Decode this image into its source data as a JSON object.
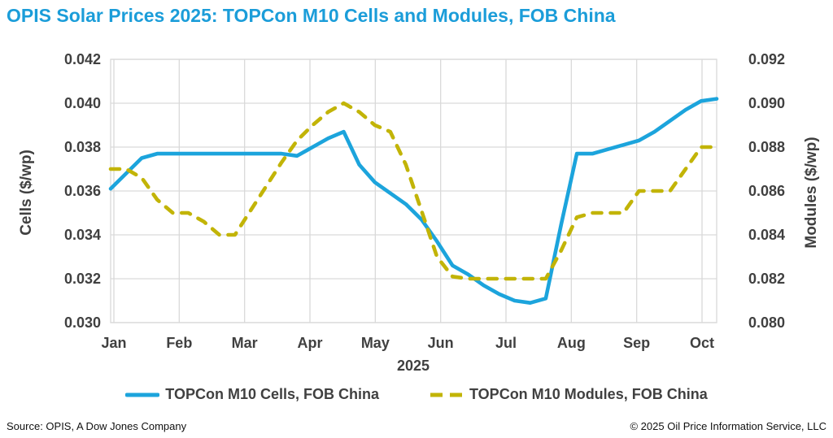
{
  "title": "OPIS Solar Prices 2025: TOPCon M10 Cells and Modules, FOB China",
  "colors": {
    "title_text": "#1b9dd9",
    "cells_line": "#1ca4dc",
    "modules_line": "#c2b407",
    "gridline": "#d9d9d9",
    "axis_text": "#404040",
    "footer_text": "#111111"
  },
  "chart_data": {
    "type": "line",
    "title": "OPIS Solar Prices 2025: TOPCon M10 Cells and Modules, FOB China",
    "grid": true,
    "legend_position": "bottom",
    "x_axis": {
      "year_label": "2025",
      "frequency": "weekly",
      "months": [
        "Jan",
        "Feb",
        "Mar",
        "Apr",
        "May",
        "Jun",
        "Jul",
        "Aug",
        "Sep",
        "Oct"
      ]
    },
    "left_axis": {
      "title": "Cells ($/wp)",
      "min": 0.03,
      "max": 0.042,
      "tick_step": 0.002,
      "ticks": [
        "0.042",
        "0.040",
        "0.038",
        "0.036",
        "0.034",
        "0.032",
        "0.030"
      ]
    },
    "right_axis": {
      "title": "Modules ($/wp)",
      "min": 0.08,
      "max": 0.092,
      "tick_step": 0.002,
      "ticks": [
        "0.092",
        "0.090",
        "0.088",
        "0.086",
        "0.084",
        "0.082",
        "0.080"
      ]
    },
    "series": [
      {
        "name": "TOPCon M10 Cells, FOB China",
        "axis": "left",
        "color": "#1ca4dc",
        "line_style": "solid",
        "values": [
          0.0361,
          0.0368,
          0.0375,
          0.0377,
          0.0377,
          0.0377,
          0.0377,
          0.0377,
          0.0377,
          0.0377,
          0.0377,
          0.0377,
          0.0376,
          0.038,
          0.0384,
          0.0387,
          0.0372,
          0.0364,
          0.0359,
          0.0354,
          0.0347,
          0.0337,
          0.0326,
          0.0322,
          0.0317,
          0.0313,
          0.031,
          0.0309,
          0.0311,
          0.0345,
          0.0377,
          0.0377,
          0.0379,
          0.0381,
          0.0383,
          0.0387,
          0.0392,
          0.0397,
          0.0401,
          0.0402
        ]
      },
      {
        "name": "TOPCon M10 Modules, FOB China",
        "axis": "right",
        "color": "#c2b407",
        "line_style": "dashed",
        "values": [
          0.087,
          0.087,
          0.0866,
          0.0856,
          0.085,
          0.085,
          0.0846,
          0.084,
          0.084,
          0.0851,
          0.0862,
          0.0873,
          0.0883,
          0.089,
          0.0896,
          0.09,
          0.0896,
          0.089,
          0.0887,
          0.0872,
          0.0851,
          0.083,
          0.0821,
          0.082,
          0.082,
          0.082,
          0.082,
          0.082,
          0.082,
          0.0833,
          0.0848,
          0.085,
          0.085,
          0.085,
          0.086,
          0.086,
          0.086,
          0.087,
          0.088,
          0.088
        ]
      }
    ]
  },
  "legend": {
    "cells_label": "TOPCon M10 Cells, FOB China",
    "modules_label": "TOPCon M10 Modules, FOB China"
  },
  "footer": {
    "source": "Source: OPIS, A Dow Jones Company",
    "copyright": "© 2025 Oil Price Information Service, LLC"
  }
}
